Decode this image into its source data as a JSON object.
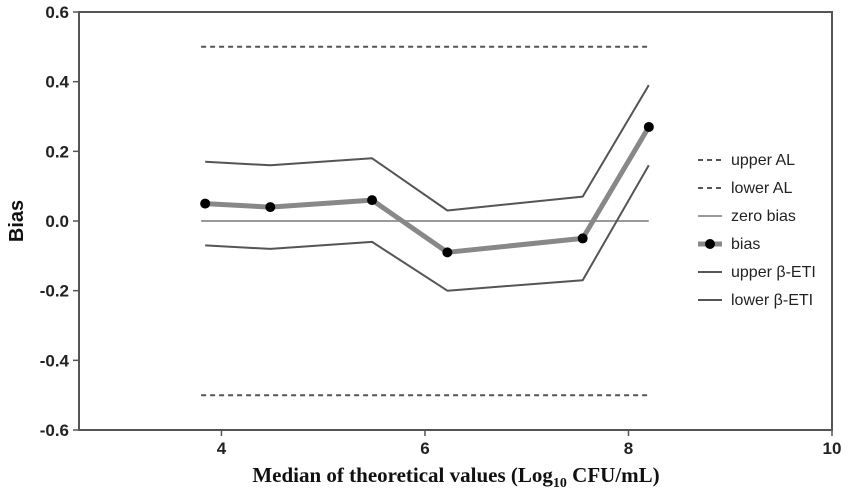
{
  "chart_data": {
    "type": "line",
    "xlabel_main": "Median of theoretical values (Log",
    "xlabel_sub": "10",
    "xlabel_tail": " CFU/mL)",
    "ylabel": "Bias",
    "xlim": [
      2.6,
      10
    ],
    "ylim": [
      -0.6,
      0.6
    ],
    "x_ticks": [
      "4",
      "6",
      "8",
      "10"
    ],
    "y_ticks": [
      "0.6",
      "0.4",
      "0.2",
      "0.0",
      "-0.2",
      "-0.4",
      "-0.6"
    ],
    "grid": false,
    "legend_position": "right",
    "series": [
      {
        "name": "upper AL",
        "color": "#555555",
        "style": "dashed",
        "x": [
          3.8,
          8.2
        ],
        "y": [
          0.5,
          0.5
        ]
      },
      {
        "name": "lower AL",
        "color": "#555555",
        "style": "dashed",
        "x": [
          3.8,
          8.2
        ],
        "y": [
          -0.5,
          -0.5
        ]
      },
      {
        "name": "zero bias",
        "color": "#9a9a9a",
        "style": "solid",
        "x": [
          3.8,
          8.2
        ],
        "y": [
          0.0,
          0.0
        ]
      },
      {
        "name": "bias",
        "color": "#888888",
        "style": "thick-markers",
        "x": [
          3.84,
          4.48,
          5.48,
          6.22,
          7.55,
          8.2
        ],
        "y": [
          0.05,
          0.04,
          0.06,
          -0.09,
          -0.05,
          0.27
        ]
      },
      {
        "name": "upper β-ETI",
        "color": "#555555",
        "style": "solid",
        "x": [
          3.84,
          4.48,
          5.48,
          6.22,
          7.55,
          8.2
        ],
        "y": [
          0.17,
          0.16,
          0.18,
          0.03,
          0.07,
          0.39
        ]
      },
      {
        "name": "lower β-ETI",
        "color": "#555555",
        "style": "solid",
        "x": [
          3.84,
          4.48,
          5.48,
          6.22,
          7.55,
          8.2
        ],
        "y": [
          -0.07,
          -0.08,
          -0.06,
          -0.2,
          -0.17,
          0.16
        ]
      }
    ]
  }
}
